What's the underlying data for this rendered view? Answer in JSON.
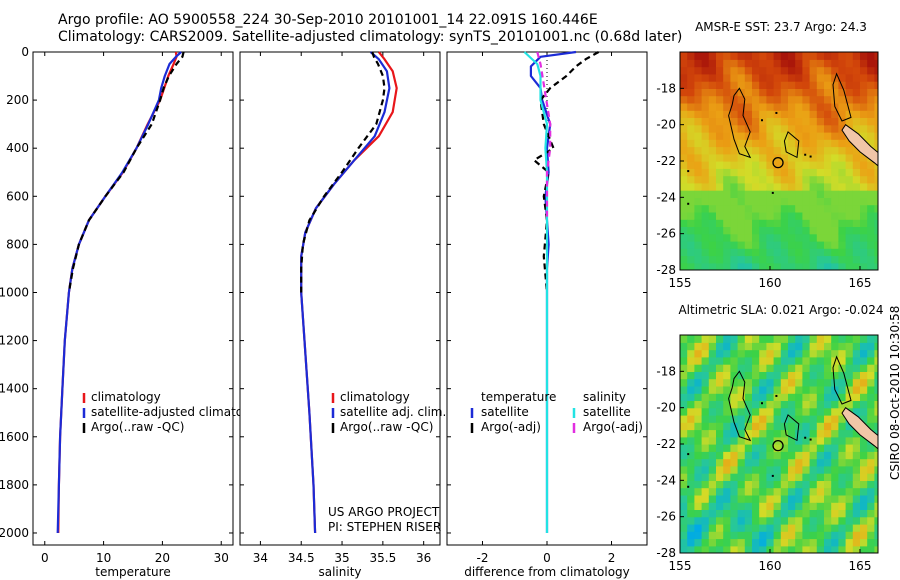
{
  "header": {
    "line1": "Argo profile: AO 5900558_224 30-Sep-2010 20101001_14 22.091S 160.446E",
    "line2": "Climatology: CARS2009. Satellite-adjusted climatology: synTS_20101001.nc (0.68d later)"
  },
  "credit": "CSIRO 08-Oct-2010 10:30:58",
  "colors": {
    "red": "#e8161a",
    "blue": "#1c2bd6",
    "black": "#000000",
    "cyan": "#22e3e3",
    "magenta": "#e22ee0"
  },
  "chart_data": [
    {
      "type": "line",
      "xlabel": "temperature",
      "ylabel": "",
      "xlim": [
        -2,
        32
      ],
      "ylim": [
        2050,
        0
      ],
      "xticks": [
        0,
        10,
        20,
        30
      ],
      "yticks": [
        0,
        200,
        400,
        600,
        800,
        1000,
        1200,
        1400,
        1600,
        1800,
        2000
      ],
      "legend": [
        "climatology",
        "satellite-adjusted climatology",
        "Argo(..raw -QC)"
      ],
      "series": [
        {
          "name": "climatology",
          "color": "red",
          "style": "solid",
          "points": [
            [
              22.3,
              0
            ],
            [
              22.4,
              20
            ],
            [
              21.9,
              50
            ],
            [
              21.0,
              100
            ],
            [
              20.3,
              150
            ],
            [
              19.6,
              200
            ],
            [
              17.5,
              300
            ],
            [
              15.6,
              400
            ],
            [
              13.3,
              500
            ],
            [
              10.3,
              600
            ],
            [
              7.5,
              700
            ],
            [
              5.8,
              800
            ],
            [
              4.7,
              900
            ],
            [
              4.1,
              1000
            ],
            [
              3.4,
              1200
            ],
            [
              3.0,
              1400
            ],
            [
              2.6,
              1600
            ],
            [
              2.4,
              1800
            ],
            [
              2.3,
              2000
            ]
          ]
        },
        {
          "name": "satellite-adjusted climatology",
          "color": "blue",
          "style": "solid",
          "points": [
            [
              23.2,
              0
            ],
            [
              22.3,
              20
            ],
            [
              21.2,
              50
            ],
            [
              20.4,
              100
            ],
            [
              19.8,
              150
            ],
            [
              19.4,
              200
            ],
            [
              17.6,
              300
            ],
            [
              15.6,
              400
            ],
            [
              13.2,
              500
            ],
            [
              10.3,
              600
            ],
            [
              7.5,
              700
            ],
            [
              5.8,
              800
            ],
            [
              4.7,
              900
            ],
            [
              4.1,
              1000
            ],
            [
              3.4,
              1200
            ],
            [
              3.0,
              1400
            ],
            [
              2.6,
              1600
            ],
            [
              2.4,
              1800
            ],
            [
              2.2,
              2000
            ]
          ]
        },
        {
          "name": "Argo(..raw -QC)",
          "color": "black",
          "style": "dashed",
          "points": [
            [
              23.6,
              0
            ],
            [
              23.4,
              20
            ],
            [
              22.4,
              50
            ],
            [
              21.1,
              100
            ],
            [
              20.2,
              150
            ],
            [
              19.6,
              200
            ],
            [
              18.2,
              300
            ],
            [
              15.6,
              400
            ],
            [
              13.4,
              500
            ],
            [
              10.3,
              600
            ],
            [
              7.5,
              700
            ],
            [
              5.8,
              800
            ],
            [
              4.8,
              900
            ],
            [
              4.1,
              1000
            ]
          ]
        }
      ]
    },
    {
      "type": "line",
      "xlabel": "salinity",
      "ylabel": "",
      "xlim": [
        33.75,
        36.2
      ],
      "ylim": [
        2050,
        0
      ],
      "xticks": [
        34,
        34.5,
        35,
        35.5,
        36
      ],
      "yticks": [
        0,
        200,
        400,
        600,
        800,
        1000,
        1200,
        1400,
        1600,
        1800,
        2000
      ],
      "legend": [
        "climatology",
        "satellite adj. clim.",
        "Argo(..raw -QC)"
      ],
      "footer": [
        "US ARGO PROJECT",
        "PI: STEPHEN RISER"
      ],
      "series": [
        {
          "name": "climatology",
          "color": "red",
          "style": "solid",
          "points": [
            [
              35.45,
              0
            ],
            [
              35.52,
              30
            ],
            [
              35.62,
              80
            ],
            [
              35.67,
              150
            ],
            [
              35.62,
              250
            ],
            [
              35.45,
              350
            ],
            [
              35.15,
              450
            ],
            [
              34.9,
              550
            ],
            [
              34.68,
              650
            ],
            [
              34.55,
              750
            ],
            [
              34.5,
              850
            ],
            [
              34.5,
              1000
            ],
            [
              34.54,
              1200
            ],
            [
              34.6,
              1500
            ],
            [
              34.65,
              1800
            ],
            [
              34.67,
              2000
            ]
          ]
        },
        {
          "name": "satellite adj. clim.",
          "color": "blue",
          "style": "solid",
          "points": [
            [
              35.35,
              0
            ],
            [
              35.45,
              30
            ],
            [
              35.55,
              80
            ],
            [
              35.58,
              150
            ],
            [
              35.52,
              250
            ],
            [
              35.4,
              350
            ],
            [
              35.15,
              450
            ],
            [
              34.9,
              550
            ],
            [
              34.68,
              650
            ],
            [
              34.55,
              750
            ],
            [
              34.5,
              850
            ],
            [
              34.5,
              1000
            ],
            [
              34.54,
              1200
            ],
            [
              34.6,
              1500
            ],
            [
              34.65,
              1800
            ],
            [
              34.67,
              2000
            ]
          ]
        },
        {
          "name": "Argo(..raw -QC)",
          "color": "black",
          "style": "dashed",
          "points": [
            [
              35.37,
              0
            ],
            [
              35.39,
              20
            ],
            [
              35.44,
              50
            ],
            [
              35.5,
              100
            ],
            [
              35.52,
              150
            ],
            [
              35.5,
              200
            ],
            [
              35.42,
              300
            ],
            [
              35.2,
              400
            ],
            [
              35.0,
              500
            ],
            [
              34.78,
              600
            ],
            [
              34.6,
              700
            ],
            [
              34.52,
              800
            ],
            [
              34.5,
              900
            ],
            [
              34.5,
              1000
            ]
          ]
        }
      ]
    },
    {
      "type": "line",
      "xlabel": "difference from climatology",
      "ylabel": "",
      "xlim": [
        -3.1,
        3.1
      ],
      "ylim": [
        2050,
        0
      ],
      "xticks": [
        -2,
        0,
        2
      ],
      "yticks": [
        0,
        200,
        400,
        600,
        800,
        1000,
        1200,
        1400,
        1600,
        1800,
        2000
      ],
      "legend": [
        "temperature",
        "satellite",
        "Argo(-adj)",
        "salinity",
        "satellite",
        "Argo(-adj)"
      ],
      "series": [
        {
          "name": "satellite",
          "color": "blue",
          "style": "solid",
          "points": [
            [
              0.9,
              0
            ],
            [
              -0.2,
              20
            ],
            [
              -0.5,
              60
            ],
            [
              -0.5,
              100
            ],
            [
              -0.2,
              150
            ],
            [
              -0.15,
              200
            ],
            [
              0.1,
              300
            ],
            [
              0.0,
              400
            ],
            [
              0.05,
              500
            ],
            [
              -0.05,
              600
            ],
            [
              0.0,
              700
            ],
            [
              0.05,
              800
            ],
            [
              0.0,
              900
            ],
            [
              0.0,
              1000
            ],
            [
              0.0,
              2000
            ]
          ]
        },
        {
          "name": "Argo(-adj)",
          "color": "black",
          "style": "dashed",
          "points": [
            [
              1.6,
              0
            ],
            [
              1.2,
              30
            ],
            [
              0.9,
              60
            ],
            [
              0.6,
              100
            ],
            [
              0.1,
              150
            ],
            [
              -0.2,
              200
            ],
            [
              -0.1,
              300
            ],
            [
              0.2,
              400
            ],
            [
              -0.4,
              450
            ],
            [
              0.05,
              500
            ],
            [
              -0.1,
              600
            ],
            [
              0.0,
              700
            ],
            [
              -0.1,
              850
            ],
            [
              0.0,
              1000
            ]
          ]
        },
        {
          "name": "satellite",
          "color": "cyan",
          "style": "solid",
          "points": [
            [
              -0.7,
              0
            ],
            [
              -0.3,
              50
            ],
            [
              -0.2,
              100
            ],
            [
              -0.2,
              200
            ],
            [
              0.0,
              300
            ],
            [
              -0.05,
              400
            ],
            [
              0.0,
              500
            ],
            [
              0.0,
              700
            ],
            [
              0.0,
              2000
            ]
          ]
        },
        {
          "name": "Argo(-adj)",
          "color": "magenta",
          "style": "dashed",
          "points": [
            [
              -0.3,
              0
            ],
            [
              -0.2,
              50
            ],
            [
              0.1,
              300
            ],
            [
              0.1,
              400
            ],
            [
              0.0,
              500
            ],
            [
              0.0,
              700
            ]
          ]
        }
      ]
    },
    {
      "type": "heatmap",
      "title": "AMSR-E SST: 23.7 Argo: 24.3",
      "xlim": [
        155,
        166
      ],
      "ylim": [
        -28,
        -16
      ],
      "xticks": [
        155,
        160,
        165
      ],
      "yticks": [
        -18,
        -20,
        -22,
        -24,
        -26,
        -28
      ],
      "profile_location": [
        160.446,
        -22.091
      ]
    },
    {
      "type": "heatmap",
      "title": "Altimetric SLA: 0.021 Argo: -0.024",
      "xlim": [
        155,
        166
      ],
      "ylim": [
        -28,
        -16
      ],
      "xticks": [
        155,
        160,
        165
      ],
      "yticks": [
        -18,
        -20,
        -22,
        -24,
        -26,
        -28
      ],
      "profile_location": [
        160.446,
        -22.091
      ]
    }
  ]
}
